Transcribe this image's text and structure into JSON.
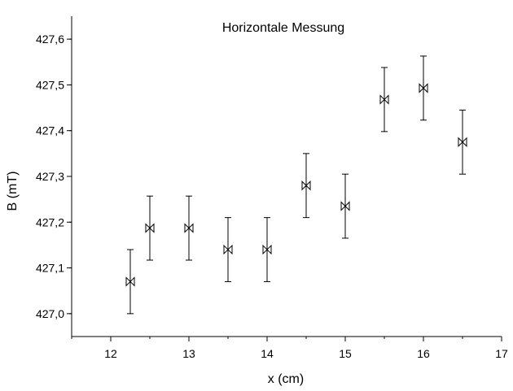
{
  "chart_data": {
    "type": "scatter",
    "title": "Horizontale Messung",
    "xlabel": "x (cm)",
    "ylabel": "B (mT)",
    "xlim": [
      11.5,
      17
    ],
    "ylim": [
      426.95,
      427.65
    ],
    "xticks": [
      12,
      13,
      14,
      15,
      16,
      17
    ],
    "xtick_labels": [
      "12",
      "13",
      "14",
      "15",
      "16",
      "17"
    ],
    "yticks": [
      427.0,
      427.1,
      427.2,
      427.3,
      427.4,
      427.5,
      427.6
    ],
    "ytick_labels": [
      "427,0",
      "427,1",
      "427,2",
      "427,3",
      "427,4",
      "427,5",
      "427,6"
    ],
    "grid": false,
    "marker": "bowtie",
    "points": [
      {
        "x": 12.25,
        "y": 427.07,
        "err": 0.07
      },
      {
        "x": 12.5,
        "y": 427.187,
        "err": 0.07
      },
      {
        "x": 13.0,
        "y": 427.187,
        "err": 0.07
      },
      {
        "x": 13.5,
        "y": 427.14,
        "err": 0.07
      },
      {
        "x": 14.0,
        "y": 427.14,
        "err": 0.07
      },
      {
        "x": 14.5,
        "y": 427.28,
        "err": 0.07
      },
      {
        "x": 15.0,
        "y": 427.235,
        "err": 0.07
      },
      {
        "x": 15.5,
        "y": 427.468,
        "err": 0.07
      },
      {
        "x": 16.0,
        "y": 427.493,
        "err": 0.07
      },
      {
        "x": 16.5,
        "y": 427.375,
        "err": 0.07
      }
    ]
  }
}
